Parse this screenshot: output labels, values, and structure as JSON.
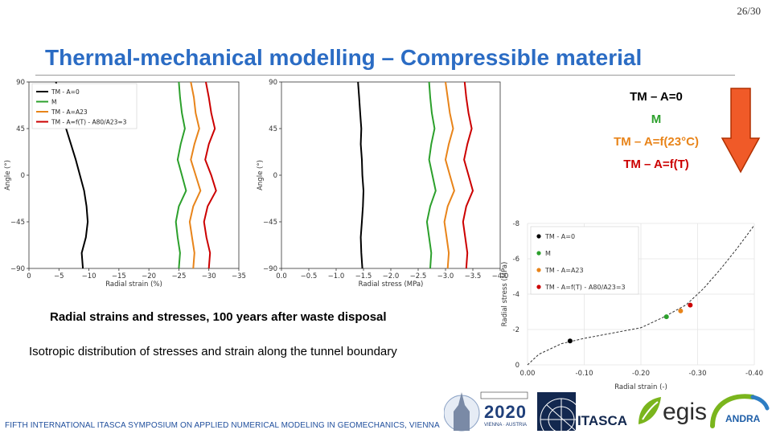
{
  "slide": {
    "page_number": "26/30",
    "title": "Thermal-mechanical modelling – Compressible material",
    "legend": [
      {
        "label": "TM – A=0",
        "color": "#000000"
      },
      {
        "label": "M",
        "color": "#2ca02c"
      },
      {
        "label": "TM – A=f(23°C)",
        "color": "#e8841a"
      },
      {
        "label": "TM – A=f(T)",
        "color": "#cc0000"
      }
    ],
    "arrow_color": "#f05a28",
    "caption_1": "Radial strains and stresses, 100 years after waste disposal",
    "caption_2": "Isotropic distribution of stresses and strain along the tunnel boundary",
    "footer": "FIFTH INTERNATIONAL ITASCA SYMPOSIUM ON APPLIED NUMERICAL MODELING IN GEOMECHANICS, VIENNA",
    "logos": {
      "symposium_year": "2020",
      "symposium_city": "VIENNA · AUSTRIA",
      "itasca": "ITASCA",
      "egis": "egis",
      "andra": "ANDRA"
    }
  },
  "chart_data": [
    {
      "type": "line",
      "xlabel": "Radial strain (%)",
      "ylabel": "Angle (°)",
      "xlim": [
        0,
        -35
      ],
      "ylim": [
        -90,
        90
      ],
      "x_ticks": [
        "0",
        "−5",
        "−10",
        "−15",
        "−20",
        "−25",
        "−30",
        "−35"
      ],
      "y_ticks": [
        "90",
        "45",
        "0",
        "−45",
        "−90"
      ],
      "legend_position": "top-left",
      "legend": [
        "TM - A=0",
        "M",
        "TM - A=A23",
        "TM - A=f(T) - A80/A23=3"
      ],
      "series": [
        {
          "name": "TM - A=0",
          "color": "#000000",
          "y": [
            90,
            75,
            60,
            45,
            30,
            15,
            0,
            -15,
            -30,
            -45,
            -60,
            -75,
            -90
          ],
          "x": [
            -4.5,
            -5.0,
            -5.8,
            -6.2,
            -7.0,
            -7.8,
            -8.5,
            -9.2,
            -9.6,
            -9.8,
            -9.5,
            -8.8,
            -9.0
          ]
        },
        {
          "name": "M",
          "color": "#2ca02c",
          "y": [
            90,
            75,
            60,
            45,
            30,
            15,
            0,
            -15,
            -30,
            -45,
            -60,
            -75,
            -90
          ],
          "x": [
            -25.0,
            -25.2,
            -25.5,
            -26.0,
            -25.3,
            -24.8,
            -25.5,
            -26.2,
            -25.0,
            -24.5,
            -24.8,
            -25.2,
            -25.0
          ]
        },
        {
          "name": "TM - A=A23",
          "color": "#e8841a",
          "y": [
            90,
            75,
            60,
            45,
            30,
            15,
            0,
            -15,
            -30,
            -45,
            -60,
            -75,
            -90
          ],
          "x": [
            -27.0,
            -27.5,
            -27.8,
            -28.4,
            -27.6,
            -27.0,
            -27.8,
            -28.6,
            -27.4,
            -26.8,
            -27.2,
            -27.6,
            -27.4
          ]
        },
        {
          "name": "TM - A=f(T) - A80/A23=3",
          "color": "#cc0000",
          "y": [
            90,
            75,
            60,
            45,
            30,
            15,
            0,
            -15,
            -30,
            -45,
            -60,
            -75,
            -90
          ],
          "x": [
            -29.5,
            -30.0,
            -30.4,
            -31.0,
            -30.0,
            -29.4,
            -30.4,
            -31.2,
            -29.8,
            -29.2,
            -29.6,
            -30.2,
            -30.0
          ]
        }
      ]
    },
    {
      "type": "line",
      "xlabel": "Radial stress (MPa)",
      "ylabel": "Angle (°)",
      "xlim": [
        0,
        -4.0
      ],
      "ylim": [
        -90,
        90
      ],
      "x_ticks": [
        "0.0",
        "−0.5",
        "−1.0",
        "−1.5",
        "−2.0",
        "−2.5",
        "−3.0",
        "−3.5",
        "−4.0"
      ],
      "y_ticks": [
        "90",
        "45",
        "0",
        "−45",
        "−90"
      ],
      "series": [
        {
          "name": "TM - A=0",
          "color": "#000000",
          "y": [
            90,
            75,
            60,
            45,
            30,
            15,
            0,
            -15,
            -30,
            -45,
            -60,
            -75,
            -90
          ],
          "x": [
            -1.4,
            -1.42,
            -1.44,
            -1.46,
            -1.45,
            -1.47,
            -1.48,
            -1.5,
            -1.49,
            -1.47,
            -1.45,
            -1.46,
            -1.48
          ]
        },
        {
          "name": "M",
          "color": "#2ca02c",
          "y": [
            90,
            75,
            60,
            45,
            30,
            15,
            0,
            -15,
            -30,
            -45,
            -60,
            -75,
            -90
          ],
          "x": [
            -2.7,
            -2.72,
            -2.75,
            -2.8,
            -2.74,
            -2.7,
            -2.76,
            -2.82,
            -2.72,
            -2.66,
            -2.7,
            -2.74,
            -2.72
          ]
        },
        {
          "name": "TM - A=A23",
          "color": "#e8841a",
          "y": [
            90,
            75,
            60,
            45,
            30,
            15,
            0,
            -15,
            -30,
            -45,
            -60,
            -75,
            -90
          ],
          "x": [
            -3.0,
            -3.04,
            -3.08,
            -3.14,
            -3.06,
            -3.0,
            -3.08,
            -3.16,
            -3.04,
            -2.98,
            -3.02,
            -3.06,
            -3.04
          ]
        },
        {
          "name": "TM - A=f(T) - A80/A23=3",
          "color": "#cc0000",
          "y": [
            90,
            75,
            60,
            45,
            30,
            15,
            0,
            -15,
            -30,
            -45,
            -60,
            -75,
            -90
          ],
          "x": [
            -3.35,
            -3.38,
            -3.42,
            -3.48,
            -3.4,
            -3.34,
            -3.42,
            -3.5,
            -3.38,
            -3.32,
            -3.36,
            -3.4,
            -3.38
          ]
        }
      ]
    },
    {
      "type": "scatter",
      "xlabel": "Radial strain (-)",
      "ylabel": "Radial stress (MPa)",
      "xlim": [
        0,
        -0.4
      ],
      "ylim": [
        0,
        -8
      ],
      "x_ticks": [
        "0.00",
        "-0.10",
        "-0.20",
        "-0.30",
        "-0.40"
      ],
      "y_ticks": [
        "0",
        "-2",
        "-4",
        "-6",
        "-8"
      ],
      "grid": true,
      "legend_position": "top-left",
      "curve": {
        "x": [
          0,
          -0.02,
          -0.06,
          -0.1,
          -0.15,
          -0.2,
          -0.24,
          -0.28,
          -0.31,
          -0.34,
          -0.37,
          -0.4
        ],
        "y": [
          0,
          -0.6,
          -1.2,
          -1.5,
          -1.8,
          -2.1,
          -2.7,
          -3.4,
          -4.3,
          -5.4,
          -6.6,
          -7.9
        ]
      },
      "series": [
        {
          "name": "TM - A=0",
          "color": "#000000",
          "x": [
            -0.075
          ],
          "y": [
            -1.35
          ]
        },
        {
          "name": "M",
          "color": "#2ca02c",
          "x": [
            -0.245
          ],
          "y": [
            -2.72
          ]
        },
        {
          "name": "TM - A=A23",
          "color": "#e8841a",
          "x": [
            -0.27
          ],
          "y": [
            -3.05
          ]
        },
        {
          "name": "TM - A=f(T) - A80/A23=3",
          "color": "#cc0000",
          "x": [
            -0.287
          ],
          "y": [
            -3.38
          ]
        }
      ]
    }
  ]
}
